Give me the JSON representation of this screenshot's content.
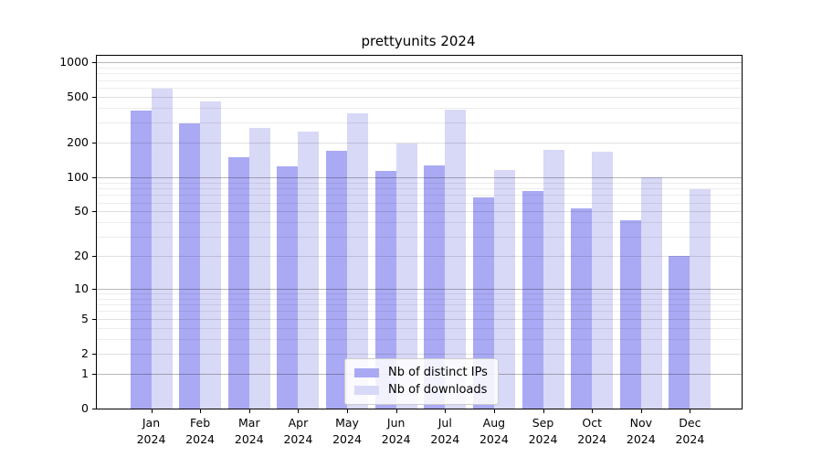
{
  "title": "prettyunits 2024",
  "chart_data": {
    "type": "bar",
    "title": "prettyunits 2024",
    "yscale": "log1p",
    "categories": [
      "Jan",
      "Feb",
      "Mar",
      "Apr",
      "May",
      "Jun",
      "Jul",
      "Aug",
      "Sep",
      "Oct",
      "Nov",
      "Dec"
    ],
    "x_year_label": "2024",
    "series": [
      {
        "name": "Nb of distinct IPs",
        "color": "#a9a9f4",
        "values": [
          380,
          295,
          150,
          124,
          170,
          113,
          126,
          67,
          75,
          53,
          42,
          20
        ]
      },
      {
        "name": "Nb of downloads",
        "color": "#d8d8f7",
        "values": [
          590,
          455,
          268,
          249,
          360,
          196,
          385,
          115,
          172,
          166,
          99,
          78
        ]
      }
    ],
    "yticks": [
      1000,
      500,
      200,
      100,
      50,
      20,
      10,
      5,
      2,
      1,
      0
    ],
    "decade_gridlines": [
      1000,
      100,
      10,
      1
    ],
    "minor_gridlines": [
      900,
      800,
      700,
      600,
      400,
      300,
      90,
      80,
      70,
      60,
      40,
      30,
      9,
      8,
      7,
      6,
      4,
      3
    ],
    "ylim": [
      0,
      1000
    ],
    "grid": true,
    "legend_position": "lower center"
  },
  "colors": {
    "background": "#ffffff",
    "distinct_ips_bar": "#a9a9f4",
    "downloads_bar": "#d8d8f7",
    "axis": "#000000"
  }
}
